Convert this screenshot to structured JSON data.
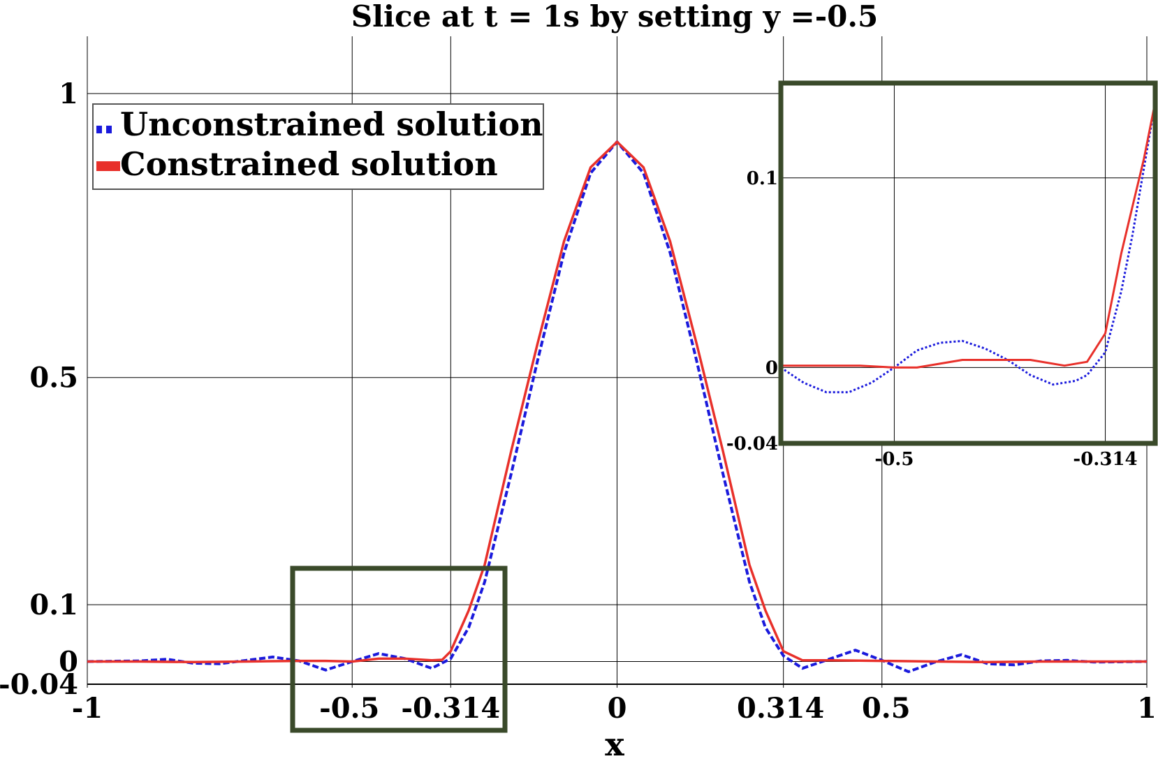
{
  "chart_data": [
    {
      "type": "line",
      "title": "Slice at t = 1s by setting y =-0.5",
      "xlabel": "x",
      "ylabel": "",
      "xlim": [
        -1,
        1
      ],
      "ylim": [
        -0.04,
        1.0
      ],
      "xticks": [
        -1,
        -0.5,
        -0.314,
        0,
        0.314,
        0.5,
        1
      ],
      "xtick_labels": [
        "-1",
        "-0.5",
        "-0.314",
        "0",
        "0.314",
        "0.5",
        "1"
      ],
      "yticks": [
        -0.04,
        0,
        0.1,
        0.5,
        1
      ],
      "ytick_labels": [
        "-0.04",
        "0",
        "0.1",
        "0.5",
        "1"
      ],
      "grid": true,
      "legend_position": "top-left",
      "series": [
        {
          "name": "Unconstrained solution",
          "color": "#1a1adc",
          "style": "dotted",
          "x": [
            -1,
            -0.9,
            -0.85,
            -0.8,
            -0.75,
            -0.7,
            -0.65,
            -0.6,
            -0.55,
            -0.5,
            -0.45,
            -0.4,
            -0.35,
            -0.314,
            -0.28,
            -0.25,
            -0.2,
            -0.15,
            -0.1,
            -0.05,
            0,
            0.05,
            0.1,
            0.15,
            0.2,
            0.25,
            0.28,
            0.314,
            0.35,
            0.4,
            0.45,
            0.5,
            0.55,
            0.6,
            0.65,
            0.7,
            0.75,
            0.8,
            0.85,
            0.9,
            1
          ],
          "y": [
            0,
            0.001,
            0.004,
            -0.003,
            -0.004,
            0.002,
            0.008,
            0.001,
            -0.015,
            0,
            0.014,
            0.005,
            -0.012,
            0.005,
            0.06,
            0.14,
            0.33,
            0.53,
            0.72,
            0.86,
            0.915,
            0.86,
            0.72,
            0.53,
            0.33,
            0.14,
            0.06,
            0.01,
            -0.012,
            0.004,
            0.02,
            0.002,
            -0.018,
            -0.001,
            0.012,
            -0.004,
            -0.006,
            0.001,
            0.002,
            -0.001,
            0
          ]
        },
        {
          "name": "Constrained solution",
          "color": "#e8302a",
          "style": "solid",
          "x": [
            -1,
            -0.9,
            -0.8,
            -0.7,
            -0.6,
            -0.55,
            -0.5,
            -0.45,
            -0.4,
            -0.35,
            -0.33,
            -0.314,
            -0.28,
            -0.25,
            -0.2,
            -0.15,
            -0.1,
            -0.05,
            0,
            0.05,
            0.1,
            0.15,
            0.2,
            0.25,
            0.28,
            0.314,
            0.35,
            0.4,
            0.5,
            0.6,
            0.7,
            0.8,
            0.9,
            1
          ],
          "y": [
            0,
            0,
            -0.001,
            0,
            0.001,
            0.001,
            0,
            0.005,
            0.005,
            0.002,
            0.003,
            0.018,
            0.09,
            0.17,
            0.37,
            0.56,
            0.74,
            0.87,
            0.915,
            0.87,
            0.74,
            0.56,
            0.37,
            0.17,
            0.09,
            0.018,
            0.002,
            0.002,
            0.001,
            0,
            -0.001,
            0,
            0,
            0
          ]
        }
      ]
    },
    {
      "type": "line",
      "title": "",
      "xlim": [
        -0.6,
        -0.27
      ],
      "ylim": [
        -0.04,
        0.15
      ],
      "xticks": [
        -0.5,
        -0.314
      ],
      "xtick_labels": [
        "-0.5",
        "-0.314"
      ],
      "yticks": [
        -0.04,
        0,
        0.1
      ],
      "ytick_labels": [
        "-0.04",
        "0",
        "0.1"
      ],
      "grid": true,
      "series": [
        {
          "name": "Unconstrained solution",
          "color": "#1a1adc",
          "style": "dotted",
          "x": [
            -0.6,
            -0.58,
            -0.56,
            -0.54,
            -0.52,
            -0.5,
            -0.48,
            -0.46,
            -0.44,
            -0.42,
            -0.4,
            -0.38,
            -0.36,
            -0.34,
            -0.33,
            -0.314,
            -0.3,
            -0.29,
            -0.28,
            -0.27
          ],
          "y": [
            0,
            -0.008,
            -0.013,
            -0.013,
            -0.008,
            0,
            0.009,
            0.013,
            0.014,
            0.01,
            0.004,
            -0.004,
            -0.009,
            -0.007,
            -0.004,
            0.008,
            0.04,
            0.07,
            0.105,
            0.14
          ]
        },
        {
          "name": "Constrained solution",
          "color": "#e8302a",
          "style": "solid",
          "x": [
            -0.6,
            -0.56,
            -0.53,
            -0.5,
            -0.48,
            -0.44,
            -0.38,
            -0.35,
            -0.33,
            -0.314,
            -0.3,
            -0.29,
            -0.28,
            -0.27
          ],
          "y": [
            0.001,
            0.001,
            0.001,
            0,
            0,
            0.004,
            0.004,
            0.001,
            0.003,
            0.018,
            0.06,
            0.085,
            0.11,
            0.14
          ]
        }
      ]
    }
  ]
}
